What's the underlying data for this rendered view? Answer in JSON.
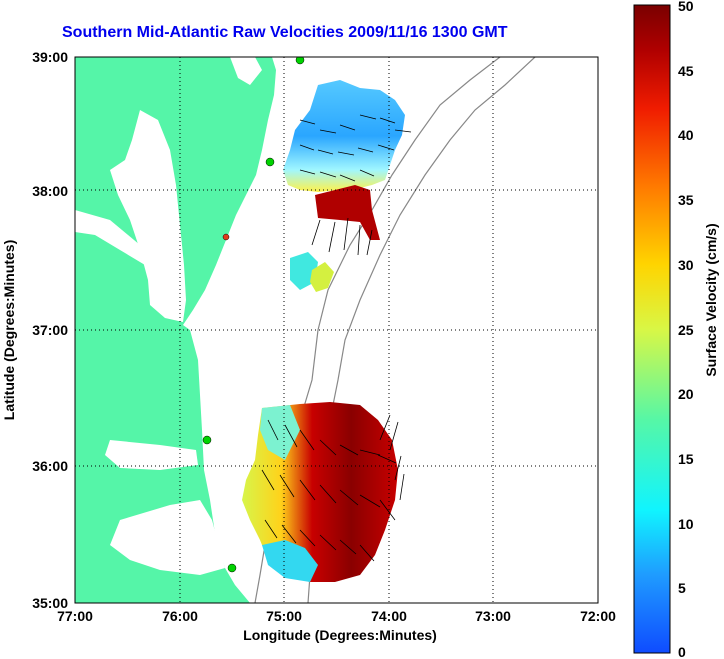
{
  "title": "Southern Mid-Atlantic Raw Velocities 2009/11/16 1300 GMT",
  "x_axis": {
    "label": "Longitude (Degrees:Minutes)",
    "ticks": [
      "77:00",
      "76:00",
      "75:00",
      "74:00",
      "73:00",
      "72:00"
    ]
  },
  "y_axis": {
    "label": "Latitude (Degrees:Minutes)",
    "ticks": [
      "39:00",
      "38:00",
      "37:00",
      "36:00",
      "35:00"
    ]
  },
  "colorbar": {
    "label": "Surface Velocity (cm/s)",
    "ticks": [
      "50",
      "45",
      "40",
      "35",
      "30",
      "25",
      "20",
      "15",
      "10",
      "5",
      "0"
    ]
  },
  "colors": {
    "land": "#55f5a8",
    "title": "#0000ee",
    "station": "#00d200",
    "station_alt": "#e23a1a"
  }
}
